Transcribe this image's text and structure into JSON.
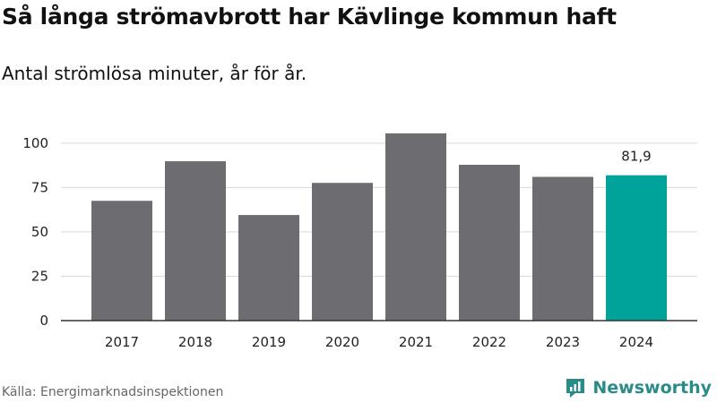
{
  "title": "Så långa strömavbrott har Kävlinge kommun haft",
  "subtitle": "Antal strömlösa minuter, år för år.",
  "source": "Källa: Energimarknadsinspektionen",
  "brand": {
    "name": "Newsworthy",
    "icon": "newsworthy-logo-icon"
  },
  "colors": {
    "bar": "#6d6c70",
    "highlight": "#00a39a",
    "grid": "#d9d9d9",
    "axis": "#333333"
  },
  "chart_data": {
    "type": "bar",
    "categories": [
      "2017",
      "2018",
      "2019",
      "2020",
      "2021",
      "2022",
      "2023",
      "2024"
    ],
    "values": [
      67.5,
      89.8,
      59.5,
      77.6,
      105.5,
      87.8,
      81.0,
      81.9
    ],
    "highlight_index": 7,
    "data_labels": [
      {
        "index": 7,
        "text": "81,9"
      }
    ],
    "yticks": [
      0,
      25,
      50,
      75,
      100
    ],
    "ylim": [
      0,
      110
    ],
    "grid": true,
    "xlabel": "",
    "ylabel": ""
  }
}
